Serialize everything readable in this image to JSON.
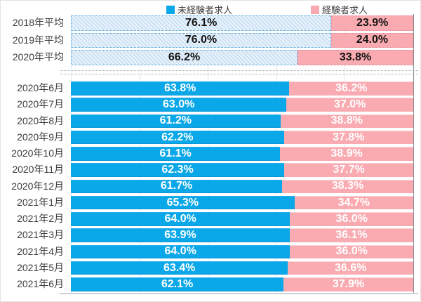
{
  "legend": {
    "items": [
      {
        "label": "未経験者求人",
        "color": "#0aa7e9"
      },
      {
        "label": "経験者求人",
        "color": "#f9abb1"
      }
    ]
  },
  "chart_data": {
    "type": "bar",
    "orientation": "horizontal",
    "stacked": true,
    "unit": "%",
    "xlim": [
      0,
      100
    ],
    "gridline_percents": [
      0,
      20,
      40,
      60,
      80,
      100
    ],
    "grid": true,
    "legend_position": "top",
    "series": [
      {
        "name": "未経験者求人",
        "color": "#0aa7e9"
      },
      {
        "name": "経験者求人",
        "color": "#f9abb1"
      }
    ],
    "yearly_rows": [
      {
        "label": "2018年平均",
        "inexperienced": 76.1,
        "experienced": 23.9
      },
      {
        "label": "2019年平均",
        "inexperienced": 76.0,
        "experienced": 24.0
      },
      {
        "label": "2020年平均",
        "inexperienced": 66.2,
        "experienced": 33.8
      }
    ],
    "monthly_rows": [
      {
        "label": "2020年6月",
        "inexperienced": 63.8,
        "experienced": 36.2
      },
      {
        "label": "2020年7月",
        "inexperienced": 63.0,
        "experienced": 37.0
      },
      {
        "label": "2020年8月",
        "inexperienced": 61.2,
        "experienced": 38.8
      },
      {
        "label": "2020年9月",
        "inexperienced": 62.2,
        "experienced": 37.8
      },
      {
        "label": "2020年10月",
        "inexperienced": 61.1,
        "experienced": 38.9
      },
      {
        "label": "2020年11月",
        "inexperienced": 62.3,
        "experienced": 37.7
      },
      {
        "label": "2020年12月",
        "inexperienced": 61.7,
        "experienced": 38.3
      },
      {
        "label": "2021年1月",
        "inexperienced": 65.3,
        "experienced": 34.7
      },
      {
        "label": "2021年2月",
        "inexperienced": 64.0,
        "experienced": 36.0
      },
      {
        "label": "2021年3月",
        "inexperienced": 63.9,
        "experienced": 36.1
      },
      {
        "label": "2021年4月",
        "inexperienced": 64.0,
        "experienced": 36.0
      },
      {
        "label": "2021年5月",
        "inexperienced": 63.4,
        "experienced": 36.6
      },
      {
        "label": "2021年6月",
        "inexperienced": 62.1,
        "experienced": 37.9
      }
    ]
  }
}
